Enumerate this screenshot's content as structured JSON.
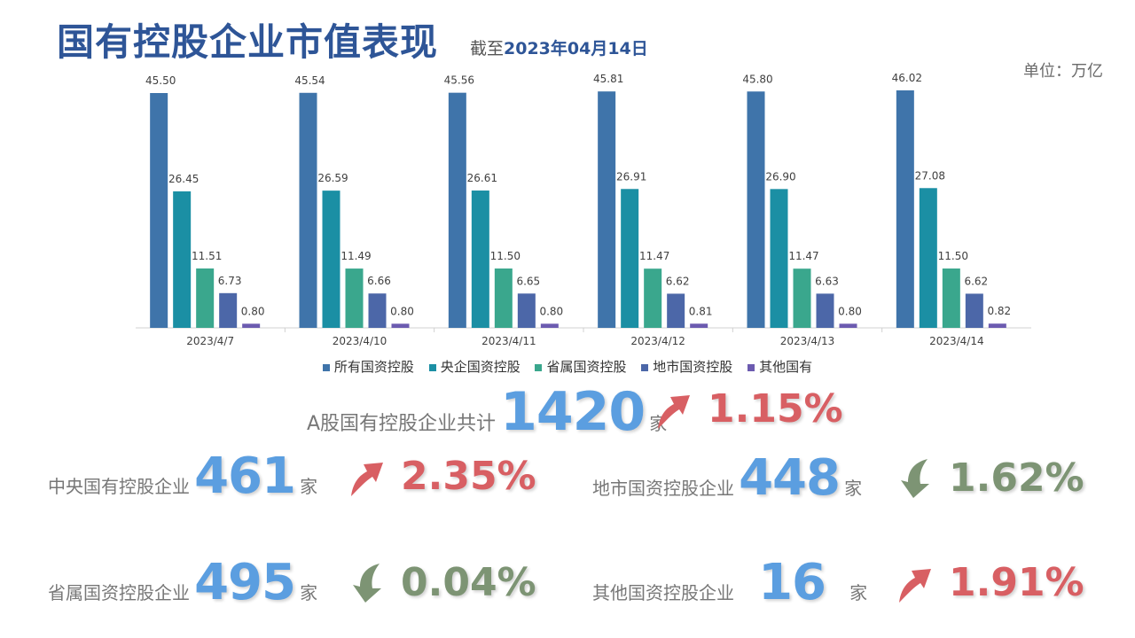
{
  "header": {
    "title": "国有控股企业市值表现",
    "asof_prefix": "截至",
    "asof_date": "2023年04月14日",
    "unit": "单位：万亿"
  },
  "colors": {
    "series": [
      "#3f74aa",
      "#1b8fa4",
      "#3aa78d",
      "#4c67a8",
      "#6c5bb0"
    ],
    "up": "#d85f63",
    "down": "#7d9474",
    "number": "#5b9ee0"
  },
  "chart_data": {
    "type": "bar",
    "categories": [
      "2023/4/7",
      "2023/4/10",
      "2023/4/11",
      "2023/4/12",
      "2023/4/13",
      "2023/4/14"
    ],
    "series": [
      {
        "name": "所有国资控股",
        "values": [
          45.5,
          45.54,
          45.56,
          45.81,
          45.8,
          46.02
        ]
      },
      {
        "name": "央企国资控股",
        "values": [
          26.45,
          26.59,
          26.61,
          26.91,
          26.9,
          27.08
        ]
      },
      {
        "name": "省属国资控股",
        "values": [
          11.51,
          11.49,
          11.5,
          11.47,
          11.47,
          11.5
        ]
      },
      {
        "name": "地市国资控股",
        "values": [
          6.73,
          6.66,
          6.65,
          6.62,
          6.63,
          6.62
        ]
      },
      {
        "name": "其他国有",
        "values": [
          0.8,
          0.8,
          0.8,
          0.81,
          0.8,
          0.82
        ]
      }
    ],
    "ylim": [
      0,
      50
    ],
    "grid": false,
    "legend": "bottom"
  },
  "stats": {
    "total": {
      "label": "A股国有控股企业共计",
      "count": "1420",
      "unit": "家",
      "change": "1.15%",
      "direction": "up"
    },
    "central": {
      "label": "中央国有控股企业",
      "count": "461",
      "unit": "家",
      "change": "2.35%",
      "direction": "up"
    },
    "city": {
      "label": "地市国资控股企业",
      "count": "448",
      "unit": "家",
      "change": "1.62%",
      "direction": "down"
    },
    "province": {
      "label": "省属国资控股企业",
      "count": "495",
      "unit": "家",
      "change": "0.04%",
      "direction": "down"
    },
    "other": {
      "label": "其他国资控股企业",
      "count": "16",
      "unit": "家",
      "change": "1.91%",
      "direction": "up"
    }
  }
}
